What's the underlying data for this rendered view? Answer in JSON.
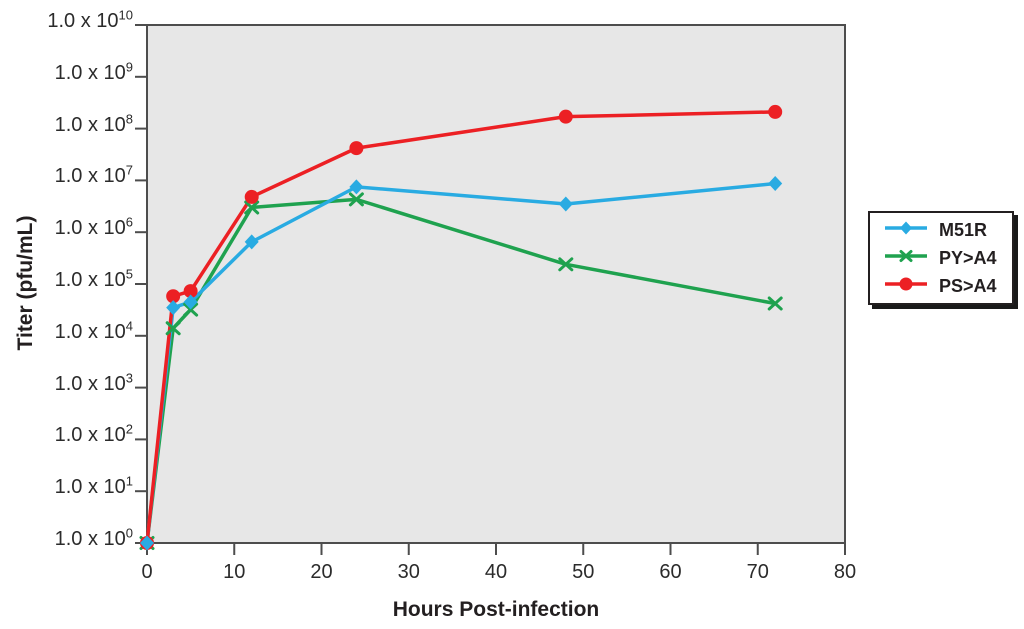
{
  "chart_data": {
    "type": "line",
    "title": "",
    "xlabel": "Hours Post-infection",
    "ylabel": "Titer (pfu/mL)",
    "x_hours": [
      0,
      3,
      5,
      12,
      24,
      48,
      72
    ],
    "xlim": [
      0,
      80
    ],
    "x_ticks": [
      0,
      10,
      20,
      30,
      40,
      50,
      60,
      70,
      80
    ],
    "y_scale": "log10",
    "ylim_exponents": [
      0,
      10
    ],
    "y_tick_label_prefix": "1.0 x 10",
    "y_tick_exponents": [
      0,
      1,
      2,
      3,
      4,
      5,
      6,
      7,
      8,
      9,
      10
    ],
    "grid": false,
    "legend_position": "right-outside",
    "plot_bg_color": "#e7e7e7",
    "frame_color": "#4d4d4d",
    "series": [
      {
        "name": "M51R",
        "color": "#29abe2",
        "marker": "diamond",
        "values": [
          1,
          35000.0,
          45000.0,
          650000.0,
          7500000.0,
          3500000.0,
          8700000.0
        ]
      },
      {
        "name": "PY>A4",
        "color": "#1fa24f",
        "marker": "x",
        "values": [
          1,
          14000.0,
          32000.0,
          3000000.0,
          4300000.0,
          240000.0,
          42000.0
        ]
      },
      {
        "name": "PS>A4",
        "color": "#ec2024",
        "marker": "circle",
        "values": [
          1,
          58000.0,
          73000.0,
          4800000.0,
          42000000.0,
          170000000.0,
          210000000.0
        ]
      }
    ]
  }
}
